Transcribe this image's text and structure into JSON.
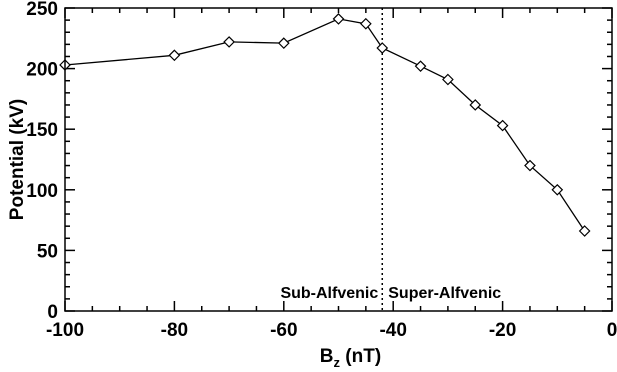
{
  "chart_data": {
    "type": "line",
    "x": [
      -100,
      -80,
      -70,
      -60,
      -50,
      -45,
      -42,
      -35,
      -30,
      -25,
      -20,
      -15,
      -10,
      -5
    ],
    "series": [
      {
        "values": [
          203,
          211,
          222,
          221,
          241,
          237,
          217,
          202,
          191,
          170,
          153,
          120,
          100,
          66
        ]
      }
    ],
    "xlabel_main": "B",
    "xlabel_sub": "z",
    "xlabel_unit": " (nT)",
    "ylabel": "Potential (kV)",
    "xlim": [
      -100,
      0
    ],
    "ylim": [
      0,
      250
    ],
    "xticks": [
      -100,
      -80,
      -60,
      -40,
      -20,
      0
    ],
    "yticks": [
      0,
      50,
      100,
      150,
      200,
      250
    ],
    "xtick_labels": [
      "-100",
      "-80",
      "-60",
      "-40",
      "-20",
      "0"
    ],
    "ytick_labels": [
      "0",
      "50",
      "100",
      "150",
      "200",
      "250"
    ],
    "marker": "diamond",
    "grid": false,
    "divider_x": -42,
    "annotations": {
      "left": "Sub-Alfvenic",
      "right": "Super-Alfvenic"
    }
  }
}
